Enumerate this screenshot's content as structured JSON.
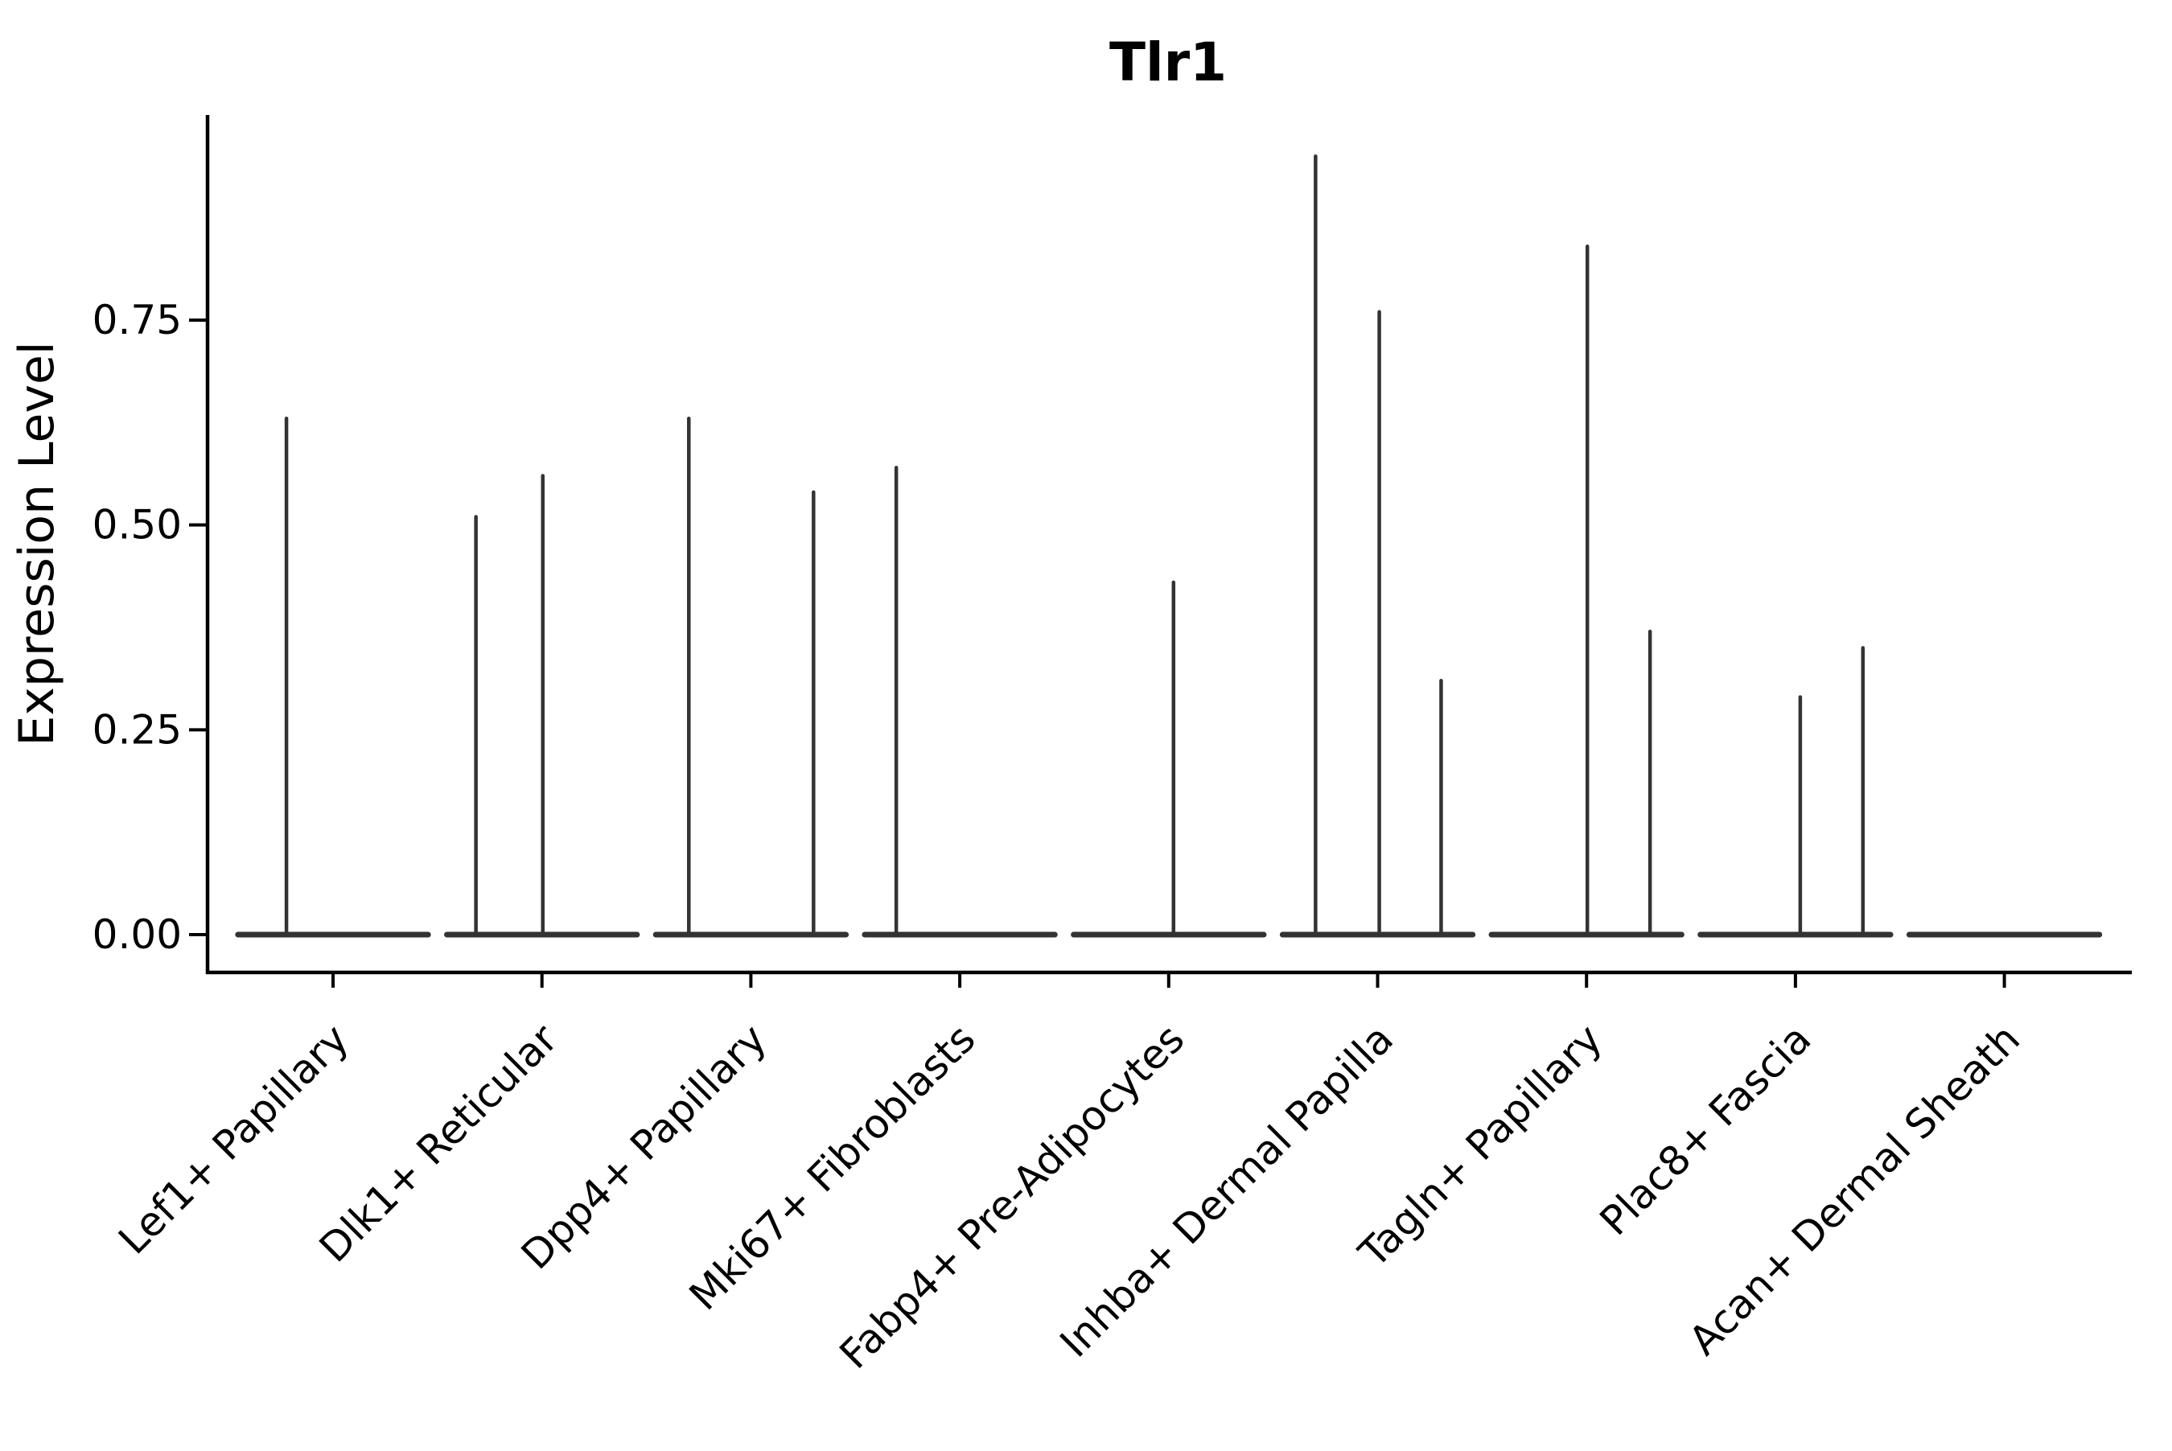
{
  "chart_data": {
    "type": "violin",
    "title": "Tlr1",
    "ylabel": "Expression Level",
    "xlabel": "",
    "legend": null,
    "grid": false,
    "ylim": [
      0,
      1.0
    ],
    "yticks": [
      0.0,
      0.25,
      0.5,
      0.75
    ],
    "ytick_labels": [
      "0.00",
      "0.25",
      "0.50",
      "0.75"
    ],
    "x_tick_rotation": 45,
    "baseline_halfwidth": 0.455,
    "categories": [
      "Lef1+ Papillary",
      "Dlk1+ Reticular",
      "Dpp4+ Papillary",
      "Mki67+ Fibroblasts",
      "Fabp4+ Pre-Adipocytes",
      "Inhba+ Dermal Papilla",
      "Tagln+ Papillary",
      "Plac8+ Fascia",
      "Acan+ Dermal Sheath"
    ],
    "series": [
      {
        "category": "Lef1+ Papillary",
        "baseline_value": 0.0,
        "spikes": [
          {
            "offset": -0.223,
            "max": 0.63
          }
        ]
      },
      {
        "category": "Dlk1+ Reticular",
        "baseline_value": 0.0,
        "spikes": [
          {
            "offset": -0.316,
            "max": 0.51
          },
          {
            "offset": 0.004,
            "max": 0.56
          }
        ]
      },
      {
        "category": "Dpp4+ Papillary",
        "baseline_value": 0.0,
        "spikes": [
          {
            "offset": -0.297,
            "max": 0.63
          },
          {
            "offset": 0.3,
            "max": 0.54
          }
        ]
      },
      {
        "category": "Mki67+ Fibroblasts",
        "baseline_value": 0.0,
        "spikes": [
          {
            "offset": -0.304,
            "max": 0.57
          }
        ]
      },
      {
        "category": "Fabp4+ Pre-Adipocytes",
        "baseline_value": 0.0,
        "spikes": [
          {
            "offset": 0.023,
            "max": 0.43
          }
        ]
      },
      {
        "category": "Inhba+ Dermal Papilla",
        "baseline_value": 0.0,
        "spikes": [
          {
            "offset": -0.297,
            "max": 0.95
          },
          {
            "offset": 0.008,
            "max": 0.76
          },
          {
            "offset": 0.304,
            "max": 0.31
          }
        ]
      },
      {
        "category": "Tagln+ Papillary",
        "baseline_value": 0.0,
        "spikes": [
          {
            "offset": 0.004,
            "max": 0.84
          },
          {
            "offset": 0.304,
            "max": 0.37
          }
        ]
      },
      {
        "category": "Plac8+ Fascia",
        "baseline_value": 0.0,
        "spikes": [
          {
            "offset": 0.023,
            "max": 0.29
          },
          {
            "offset": 0.323,
            "max": 0.35
          }
        ]
      },
      {
        "category": "Acan+ Dermal Sheath",
        "baseline_value": 0.0,
        "spikes": []
      }
    ],
    "colors": {
      "ink": "#000000",
      "violin": "#333333",
      "background": "#ffffff"
    }
  }
}
